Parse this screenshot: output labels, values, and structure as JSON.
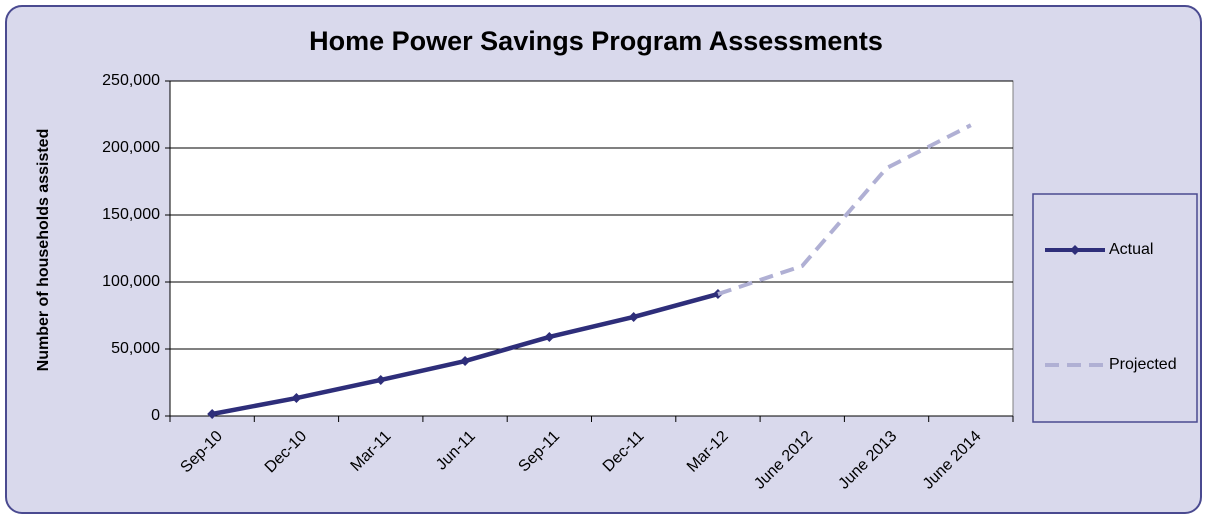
{
  "chart_data": {
    "type": "line",
    "title": "Home Power Savings Program Assessments",
    "y_label": "Number of households  assisted",
    "categories": [
      "Sep-10",
      "Dec-10",
      "Mar-11",
      "Jun-11",
      "Sep-11",
      "Dec-11",
      "Mar-12",
      "June 2012",
      "June 2013",
      "June 2014"
    ],
    "series": [
      {
        "name": "Actual",
        "color": "#2e2e7a",
        "values": [
          1500,
          13400,
          26900,
          41000,
          59000,
          73900,
          91000,
          null,
          null,
          null
        ]
      },
      {
        "name": "Projected",
        "color": "#b0b0d4",
        "dashed": true,
        "values": [
          null,
          null,
          null,
          null,
          null,
          null,
          91000,
          112000,
          185000,
          217000
        ]
      }
    ],
    "ylim": [
      0,
      250000
    ],
    "yticks": [
      0,
      {
        "value": 50000,
        "label": "50,000"
      },
      {
        "value": 100000,
        "label": "100,000"
      },
      {
        "value": 150000,
        "label": "150,000"
      },
      {
        "value": 200000,
        "label": "200,000"
      },
      {
        "value": 250000,
        "label": "250,000"
      }
    ],
    "grid": true,
    "legend": "right"
  }
}
